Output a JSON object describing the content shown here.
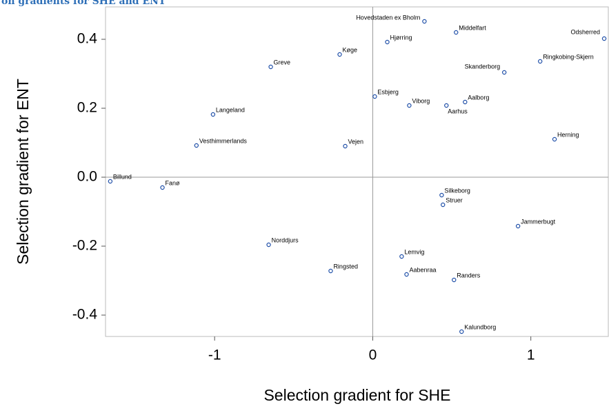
{
  "chart_data": {
    "type": "scatter",
    "title": "on gradients for SHE and ENT",
    "x_label": "Selection gradient for SHE",
    "y_label": "Selection gradient for ENT",
    "xlim": [
      -1.69,
      1.49
    ],
    "ylim": [
      -0.462,
      0.494
    ],
    "xticks": [
      -1,
      0,
      1
    ],
    "yticks": [
      -0.4,
      -0.2,
      {
        "value": 0,
        "label": "0.0"
      },
      0.2,
      0.4
    ],
    "color": "#1f4fa8",
    "series": [
      {
        "names": [
          "Billund",
          "Fanø",
          "Vesthimmerlands",
          "Langeland",
          "Greve",
          "Norddjurs",
          "Ringsted",
          "Vejen",
          "Køge",
          "Esbjerg",
          "Hjørring",
          "Hovedstaden ex Bholm",
          "Viborg",
          "Middelfart",
          "Aarhus",
          "Aalborg",
          "Skanderborg",
          "Ringkobing-Skjern",
          "Odsherred",
          "Herning",
          "Silkeborg",
          "Struer",
          "Jammerbugt",
          "Lemvig",
          "Aabenraa",
          "Randers",
          "Kalundborg"
        ],
        "x": [
          -1.66,
          -1.33,
          -1.115,
          -1.01,
          -0.645,
          -0.658,
          -0.266,
          -0.174,
          -0.209,
          0.013,
          0.092,
          0.327,
          0.231,
          0.527,
          0.466,
          0.584,
          0.832,
          1.059,
          1.464,
          1.15,
          0.436,
          0.444,
          0.919,
          0.183,
          0.214,
          0.514,
          0.562
        ],
        "y": [
          -0.012,
          -0.03,
          0.092,
          0.182,
          0.32,
          -0.196,
          -0.272,
          0.09,
          0.356,
          0.234,
          0.392,
          0.452,
          0.208,
          0.42,
          0.208,
          0.218,
          0.304,
          0.336,
          0.402,
          0.11,
          -0.052,
          -0.08,
          -0.142,
          -0.23,
          -0.282,
          -0.298,
          -0.448
        ]
      }
    ]
  }
}
